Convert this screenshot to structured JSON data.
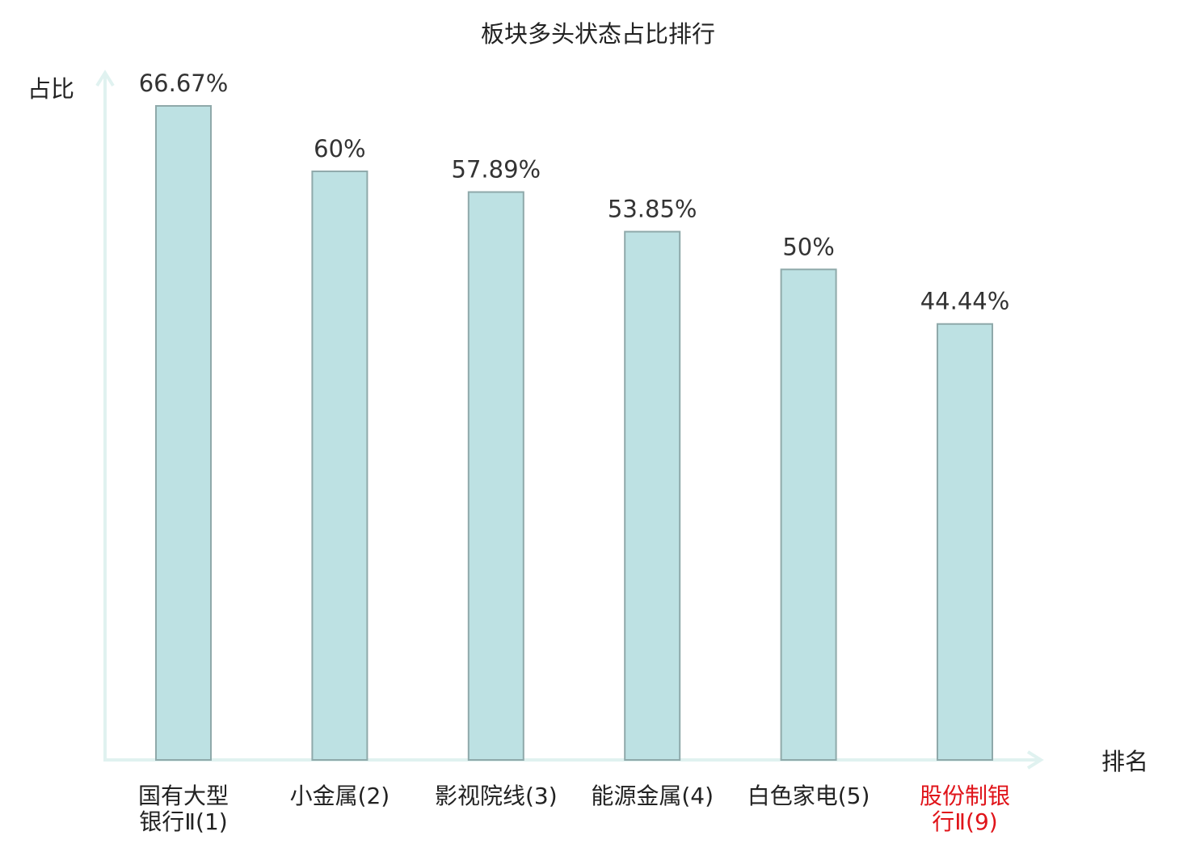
{
  "chart_data": {
    "type": "bar",
    "title": "板块多头状态占比排行",
    "xlabel": "排名",
    "ylabel": "占比",
    "categories": [
      [
        "国有大型",
        "银行Ⅱ(1)"
      ],
      [
        "小金属(2)"
      ],
      [
        "影视院线(3)"
      ],
      [
        "能源金属(4)"
      ],
      [
        "白色家电(5)"
      ],
      [
        "股份制银",
        "行Ⅱ(9)"
      ]
    ],
    "values": [
      66.67,
      60,
      57.89,
      53.85,
      50,
      44.44
    ],
    "value_labels": [
      "66.67%",
      "60%",
      "57.89%",
      "53.85%",
      "50%",
      "44.44%"
    ],
    "highlighted_category_index": 5,
    "ylim": [
      0,
      66.67
    ],
    "grid": false,
    "colors": {
      "bar_fill": "#bde1e3",
      "bar_stroke": "#8fa9aa",
      "axis": "#e0f2f0",
      "text": "#333333",
      "title_text": "#222222",
      "highlight_text": "#e0141a"
    }
  }
}
